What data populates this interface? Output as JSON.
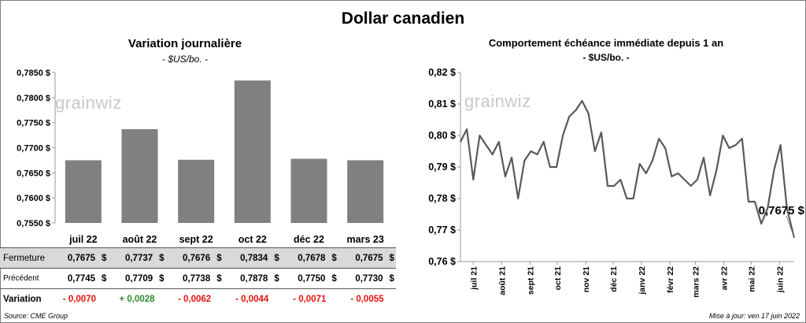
{
  "main_title": "Dollar canadien",
  "left_panel": {
    "title": "Variation  journalière",
    "subtitle": "- $US/bo. -",
    "watermark": "grainwiz",
    "bar_color": "#808080"
  },
  "right_panel": {
    "title": "Comportement échéance immédiate depuis 1 an",
    "subtitle": "- $US/bo. -",
    "watermark": "grainwiz",
    "last_label": "0,7675 $",
    "line_color": "#595959"
  },
  "table": {
    "rows": [
      {
        "label": "Fermeture",
        "values": [
          "0,7675",
          "0,7737",
          "0,7676",
          "0,7834",
          "0,7678",
          "0,7675"
        ],
        "currency": "$"
      },
      {
        "label": "Précédent",
        "values": [
          "0,7745",
          "0,7709",
          "0,7738",
          "0,7878",
          "0,7750",
          "0,7730"
        ],
        "currency": "$"
      }
    ],
    "variation_label": "Variation",
    "variations": [
      "- 0,0070",
      "+ 0,0028",
      "- 0,0062",
      "- 0,0044",
      "- 0,0071",
      "- 0,0055"
    ],
    "neg_color": "#e3120b",
    "pos_color": "#2e8b2e"
  },
  "footer": {
    "source": "Source: CME Group",
    "updated": "Mise à jour: ven 17 juin 2022"
  },
  "chart_data": [
    {
      "type": "bar",
      "title": "Variation  journalière",
      "subtitle": "- $US/bo. -",
      "categories": [
        "juil 22",
        "août 22",
        "sept 22",
        "oct 22",
        "déc 22",
        "mars 23"
      ],
      "values": [
        0.7675,
        0.7737,
        0.7676,
        0.7834,
        0.7678,
        0.7675
      ],
      "ylim": [
        0.755,
        0.785
      ],
      "yticks": [
        "0,7550 $",
        "0,7600 $",
        "0,7650 $",
        "0,7700 $",
        "0,7750 $",
        "0,7800 $",
        "0,7850 $"
      ],
      "grid": false
    },
    {
      "type": "line",
      "title": "Comportement échéance immédiate depuis 1 an",
      "subtitle": "- $US/bo. -",
      "x": [
        "2021-06-17",
        "2021-06-24",
        "2021-07-01",
        "2021-07-08",
        "2021-07-15",
        "2021-07-22",
        "2021-07-29",
        "2021-08-05",
        "2021-08-12",
        "2021-08-19",
        "2021-08-26",
        "2021-09-02",
        "2021-09-09",
        "2021-09-16",
        "2021-09-23",
        "2021-09-30",
        "2021-10-07",
        "2021-10-14",
        "2021-10-21",
        "2021-10-28",
        "2021-11-04",
        "2021-11-11",
        "2021-11-18",
        "2021-11-25",
        "2021-12-02",
        "2021-12-09",
        "2021-12-16",
        "2021-12-23",
        "2021-12-30",
        "2022-01-06",
        "2022-01-13",
        "2022-01-20",
        "2022-01-27",
        "2022-02-03",
        "2022-02-10",
        "2022-02-17",
        "2022-02-24",
        "2022-03-03",
        "2022-03-10",
        "2022-03-17",
        "2022-03-24",
        "2022-03-31",
        "2022-04-07",
        "2022-04-14",
        "2022-04-21",
        "2022-04-28",
        "2022-05-05",
        "2022-05-12",
        "2022-05-19",
        "2022-05-26",
        "2022-06-02",
        "2022-06-09",
        "2022-06-17"
      ],
      "values": [
        0.798,
        0.802,
        0.786,
        0.8,
        0.797,
        0.794,
        0.798,
        0.787,
        0.793,
        0.78,
        0.792,
        0.795,
        0.794,
        0.798,
        0.79,
        0.79,
        0.8,
        0.806,
        0.808,
        0.811,
        0.807,
        0.795,
        0.801,
        0.784,
        0.784,
        0.786,
        0.78,
        0.78,
        0.791,
        0.788,
        0.792,
        0.799,
        0.796,
        0.787,
        0.788,
        0.786,
        0.784,
        0.786,
        0.793,
        0.781,
        0.789,
        0.8,
        0.796,
        0.797,
        0.799,
        0.779,
        0.779,
        0.772,
        0.777,
        0.789,
        0.797,
        0.777,
        0.7675
      ],
      "ylim": [
        0.76,
        0.82
      ],
      "yticks": [
        "0,76 $",
        "0,77 $",
        "0,78 $",
        "0,79 $",
        "0,80 $",
        "0,81 $",
        "0,82 $"
      ],
      "xticks": [
        "juil 21",
        "août 21",
        "sept 21",
        "oct 21",
        "nov 21",
        "déc 21",
        "janv 22",
        "févr 22",
        "mars 22",
        "avr 22",
        "mai 22",
        "juin 22"
      ],
      "annotation": "0,7675 $",
      "grid": false
    }
  ]
}
